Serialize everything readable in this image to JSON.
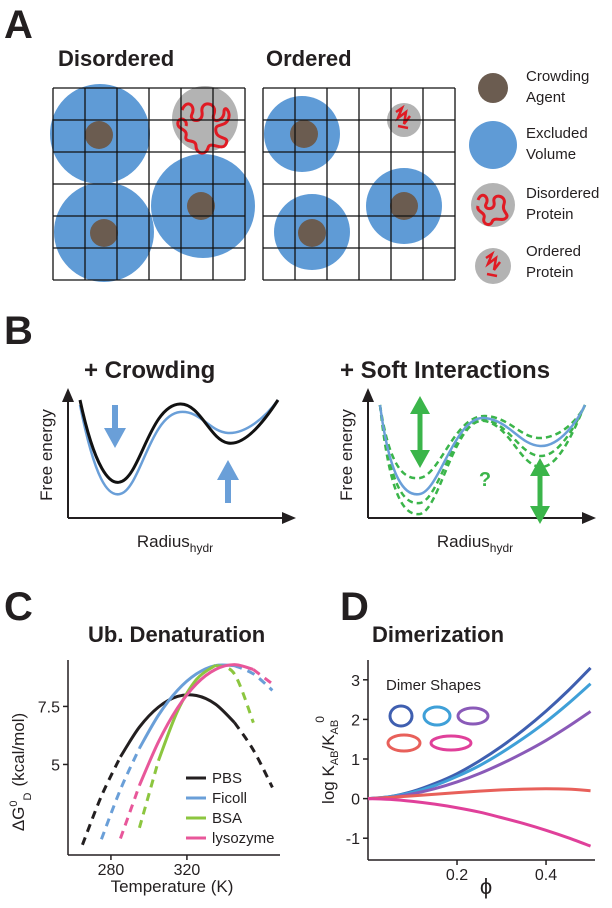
{
  "panel_a": {
    "label": "A",
    "disordered_title": "Disordered",
    "ordered_title": "Ordered",
    "legend": [
      [
        "Crowding",
        "Agent"
      ],
      [
        "Excluded",
        "Volume"
      ],
      [
        "Disordered",
        "Protein"
      ],
      [
        "Ordered",
        "Protein"
      ]
    ]
  },
  "panel_b": {
    "label": "B",
    "left": {
      "title": "+ Crowding",
      "ylabel": "Free energy",
      "xlabel": "Radius",
      "xlabel_sub": "hydr"
    },
    "right": {
      "title": "+ Soft Interactions",
      "ylabel": "Free energy",
      "xlabel": "Radius",
      "xlabel_sub": "hydr",
      "annotation": "?"
    }
  },
  "chart_data": [
    {
      "type": "line",
      "panel_label": "C",
      "title": "Ub. Denaturation",
      "xlabel": "Temperature (K)",
      "ylabel": {
        "symbol": "ΔG",
        "sup": "0",
        "sub": "D",
        "unit": "(kcal/mol)"
      },
      "x": [
        265,
        275,
        285,
        295,
        305,
        315,
        325,
        335,
        345,
        355,
        365
      ],
      "xlim": [
        257.4,
        369
      ],
      "ylim": [
        1.1,
        9.5
      ],
      "xticks": [
        280,
        320
      ],
      "yticks": [
        5,
        7.5
      ],
      "series": [
        {
          "name": "PBS",
          "color": "#231f20",
          "values": [
            null,
            null,
            5.33,
            6.61,
            7.47,
            7.93,
            7.97,
            7.6,
            6.81,
            null,
            null
          ],
          "dashed_values": [
            1.54,
            3.64,
            5.33,
            null,
            null,
            null,
            null,
            null,
            6.81,
            5.62,
            4.01
          ]
        },
        {
          "name": "Ficoll",
          "color": "#6a9fd8",
          "values": [
            null,
            null,
            null,
            5.7,
            7.12,
            8.19,
            8.9,
            9.26,
            9.26,
            null,
            null
          ],
          "dashed_values": [
            null,
            1.78,
            3.92,
            5.7,
            null,
            null,
            null,
            null,
            9.26,
            8.9,
            8.19
          ]
        },
        {
          "name": "BSA",
          "color": "#8cc63f",
          "values": [
            null,
            null,
            null,
            null,
            5.16,
            7.29,
            8.66,
            9.27,
            null,
            null,
            null
          ],
          "dashed_values": [
            null,
            null,
            null,
            2.27,
            5.16,
            null,
            null,
            9.27,
            8.9,
            6.8,
            null
          ]
        },
        {
          "name": "lysozyme",
          "color": "#e8579a",
          "values": [
            null,
            null,
            null,
            4.1,
            5.97,
            7.43,
            8.47,
            9.09,
            9.3,
            9.09,
            null
          ],
          "dashed_values": [
            null,
            null,
            1.81,
            4.1,
            null,
            null,
            null,
            null,
            null,
            9.09,
            8.47
          ]
        }
      ]
    },
    {
      "type": "line",
      "panel_label": "D",
      "title": "Dimerization",
      "xlabel": "ϕ",
      "ylabel": {
        "main": "log K",
        "sub1": "AB",
        "slash": "/K",
        "sub2": "AB",
        "sup": "0"
      },
      "annotation": "Dimer Shapes",
      "x": [
        0,
        0.05,
        0.1,
        0.15,
        0.2,
        0.25,
        0.3,
        0.35,
        0.4,
        0.45,
        0.5
      ],
      "xlim": [
        0,
        0.51
      ],
      "ylim": [
        -1.55,
        3.5
      ],
      "xticks": [
        0.2,
        0.4
      ],
      "yticks": [
        -1,
        0,
        1,
        2,
        3
      ],
      "series": [
        {
          "color": "#3f5fb0",
          "values": [
            0,
            0.05,
            0.18,
            0.38,
            0.63,
            0.95,
            1.32,
            1.74,
            2.21,
            2.73,
            3.3
          ]
        },
        {
          "color": "#3fa0d8",
          "values": [
            0,
            0.05,
            0.16,
            0.33,
            0.56,
            0.83,
            1.16,
            1.53,
            1.94,
            2.4,
            2.9
          ]
        },
        {
          "color": "#8a5ab8",
          "values": [
            0,
            0.03,
            0.12,
            0.25,
            0.42,
            0.63,
            0.88,
            1.16,
            1.47,
            1.82,
            2.2
          ]
        },
        {
          "color": "#e8605a",
          "values": [
            0,
            0.03,
            0.07,
            0.11,
            0.15,
            0.19,
            0.22,
            0.24,
            0.25,
            0.24,
            0.2
          ]
        },
        {
          "color": "#e0409a",
          "values": [
            0,
            -0.02,
            -0.07,
            -0.14,
            -0.23,
            -0.34,
            -0.48,
            -0.63,
            -0.8,
            -0.99,
            -1.2
          ]
        }
      ]
    }
  ]
}
